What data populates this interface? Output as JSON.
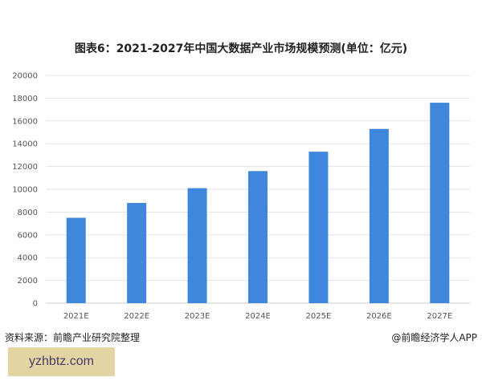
{
  "chart_data": {
    "type": "bar",
    "title": "图表6：2021-2027年中国大数据产业市场规模预测(单位：亿元)",
    "categories": [
      "2021E",
      "2022E",
      "2023E",
      "2024E",
      "2025E",
      "2026E",
      "2027E"
    ],
    "values": [
      7500,
      8800,
      10100,
      11600,
      13300,
      15300,
      17600
    ],
    "ylim": [
      0,
      20000
    ],
    "yticks": [
      0,
      2000,
      4000,
      6000,
      8000,
      10000,
      12000,
      14000,
      16000,
      18000,
      20000
    ],
    "grid": true,
    "bar_color": "#3f86dd",
    "xlabel": "",
    "ylabel": ""
  },
  "footer": {
    "source": "资料来源：前瞻产业研究院整理",
    "credit": "@前瞻经济学人APP",
    "site": "yzhbtz.com"
  }
}
